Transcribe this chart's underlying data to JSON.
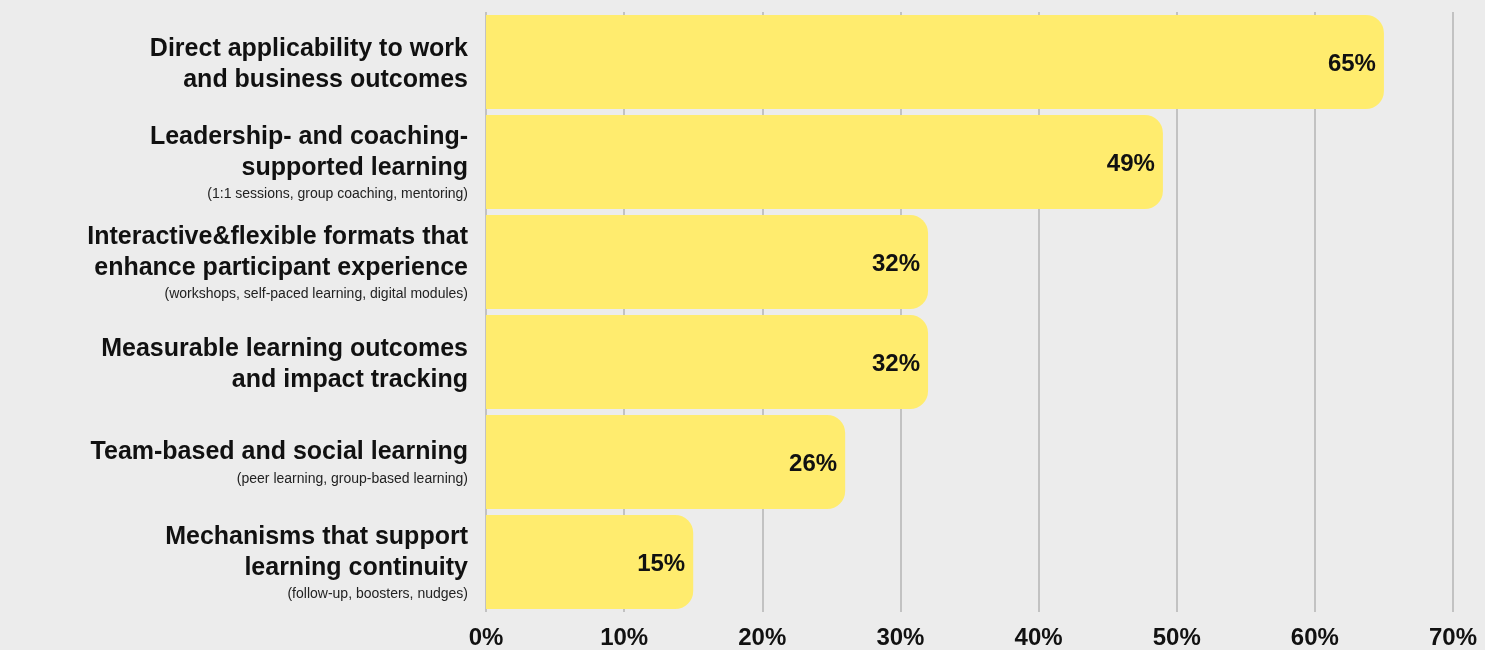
{
  "chart_data": {
    "type": "bar",
    "orientation": "horizontal",
    "categories": [
      "Direct applicability to work\nand business outcomes",
      "Leadership- and coaching-\nsupported learning\n(1:1 sessions, group coaching, mentoring)",
      "Interactive&flexible formats that\nenhance participant experience\n(workshops, self-paced learning, digital modules)",
      "Measurable learning outcomes\nand impact tracking",
      "Team-based and social learning\n(peer learning, group-based learning)",
      "Mechanisms that support\nlearning continuity\n(follow-up, boosters, nudges)"
    ],
    "values": [
      65,
      49,
      32,
      32,
      26,
      15
    ],
    "value_labels": [
      "65%",
      "49%",
      "32%",
      "32%",
      "26%",
      "15%"
    ],
    "color": "#ffec6e",
    "xlim": [
      0,
      70
    ],
    "xticks": [
      {
        "value": 0,
        "label": "0%"
      },
      {
        "value": 10,
        "label": "10%"
      },
      {
        "value": 20,
        "label": "20%"
      },
      {
        "value": 30,
        "label": "30%"
      },
      {
        "value": 40,
        "label": "40%"
      },
      {
        "value": 50,
        "label": "50%"
      },
      {
        "value": 60,
        "label": "60%"
      },
      {
        "value": 70,
        "label": "70%"
      }
    ],
    "grid": "x"
  }
}
